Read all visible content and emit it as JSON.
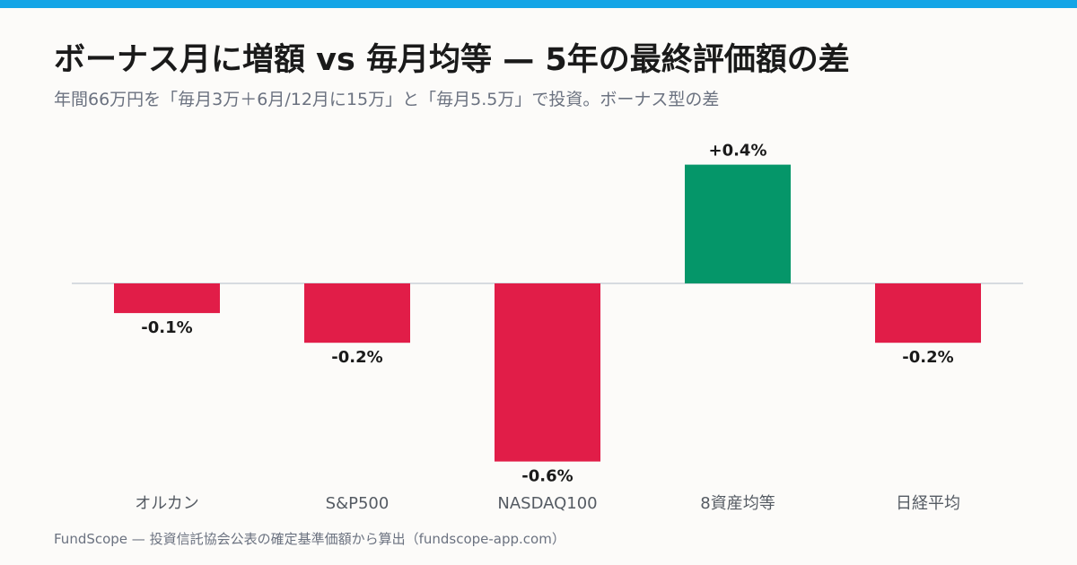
{
  "header": {
    "title": "ボーナス月に増額 vs 毎月均等 — 5年の最終評価額の差",
    "subtitle": "年間66万円を「毎月3万＋6月/12月に15万」と「毎月5.5万」で投資。ボーナス型の差"
  },
  "footer": {
    "source": "FundScope — 投資信託協会公表の確定基準価額から算出（fundscope-app.com）"
  },
  "colors": {
    "accent_bar": "#14a5e6",
    "positive": "#059669",
    "negative": "#e11d48",
    "zero_line": "#d7dbe0"
  },
  "chart_data": {
    "type": "bar",
    "title": "ボーナス月に増額 vs 毎月均等 — 5年の最終評価額の差",
    "xlabel": "",
    "ylabel": "",
    "unit": "%",
    "categories": [
      "オルカン",
      "S&P500",
      "NASDAQ100",
      "8資産均等",
      "日経平均"
    ],
    "values": [
      -0.1,
      -0.2,
      -0.6,
      0.4,
      -0.2
    ],
    "data_labels": [
      "-0.1%",
      "-0.2%",
      "-0.6%",
      "+0.4%",
      "-0.2%"
    ],
    "grid": false,
    "legend": "none"
  }
}
